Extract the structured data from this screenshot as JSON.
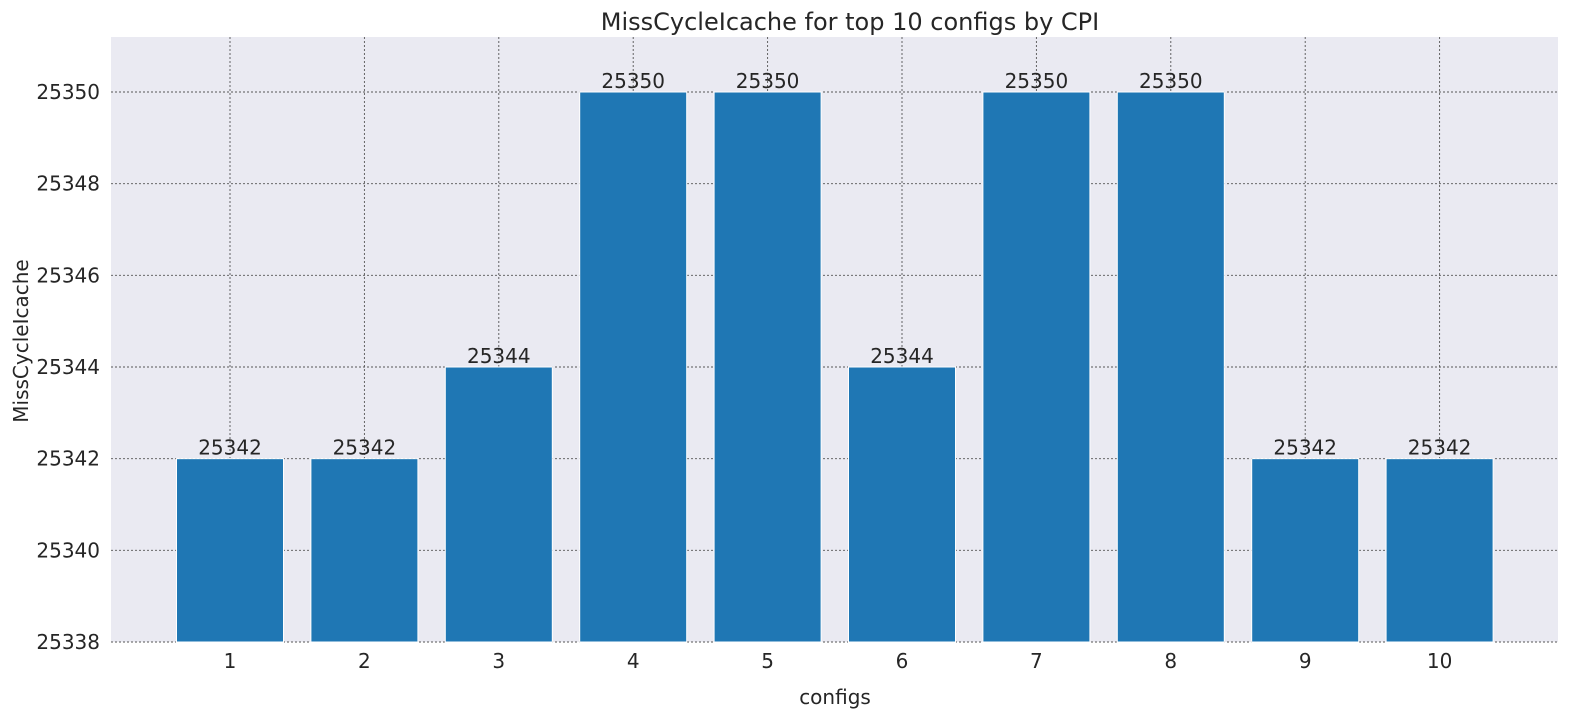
{
  "chart_data": {
    "type": "bar",
    "title": "MissCycleIcache for top 10 configs by CPI",
    "xlabel": "configs",
    "ylabel": "MissCycleIcache",
    "categories": [
      "1",
      "2",
      "3",
      "4",
      "5",
      "6",
      "7",
      "8",
      "9",
      "10"
    ],
    "values": [
      25342,
      25342,
      25344,
      25350,
      25350,
      25344,
      25350,
      25350,
      25342,
      25342
    ],
    "ylim": [
      25338,
      25351.2
    ],
    "yticks": [
      25338,
      25340,
      25342,
      25344,
      25346,
      25348,
      25350
    ],
    "grid": true,
    "data_labels": true,
    "colors": {
      "bar": "#1f77b4",
      "plot_background": "#eaeaf2",
      "grid": "#555555",
      "text": "#262626"
    }
  }
}
